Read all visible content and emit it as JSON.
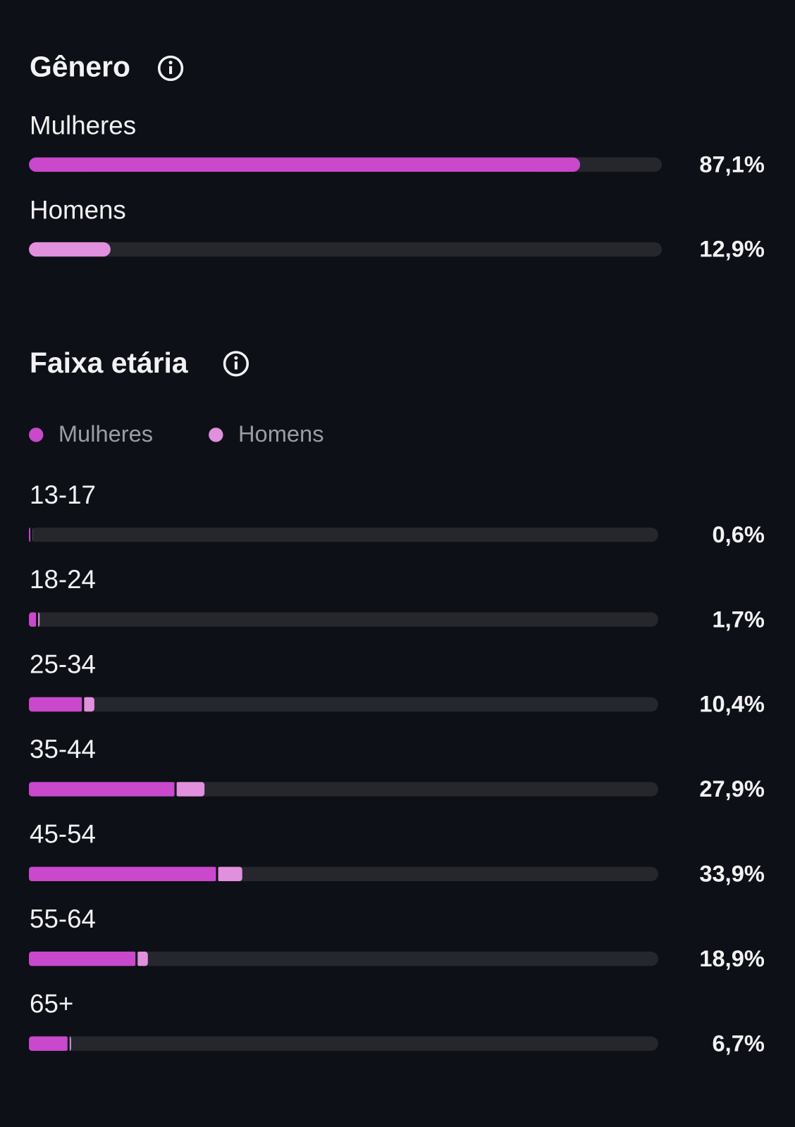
{
  "gender": {
    "type": "bar",
    "title": "Gênero",
    "categories": [
      "Mulheres",
      "Homens"
    ],
    "values": [
      87.1,
      12.9
    ],
    "value_labels": [
      "87,1%",
      "12,9%"
    ],
    "colors": [
      "#c948cc",
      "#e090dc"
    ],
    "xlim": [
      0,
      100
    ]
  },
  "age_range": {
    "type": "stacked-bar",
    "title": "Faixa etária",
    "categories": [
      "13-17",
      "18-24",
      "25-34",
      "35-44",
      "45-54",
      "55-64",
      "65+"
    ],
    "series": [
      {
        "name": "Mulheres",
        "color": "#c948cc",
        "values": [
          0.4,
          1.3,
          8.6,
          23.3,
          29.9,
          17.1,
          6.3
        ]
      },
      {
        "name": "Homens",
        "color": "#e090dc",
        "values": [
          0.2,
          0.4,
          1.8,
          4.6,
          4.0,
          1.8,
          0.4
        ]
      }
    ],
    "totals": [
      0.6,
      1.7,
      10.4,
      27.9,
      33.9,
      18.9,
      6.7
    ],
    "total_labels": [
      "0,6%",
      "1,7%",
      "10,4%",
      "27,9%",
      "33,9%",
      "18,9%",
      "6,7%"
    ],
    "xlim": [
      0,
      100
    ]
  }
}
